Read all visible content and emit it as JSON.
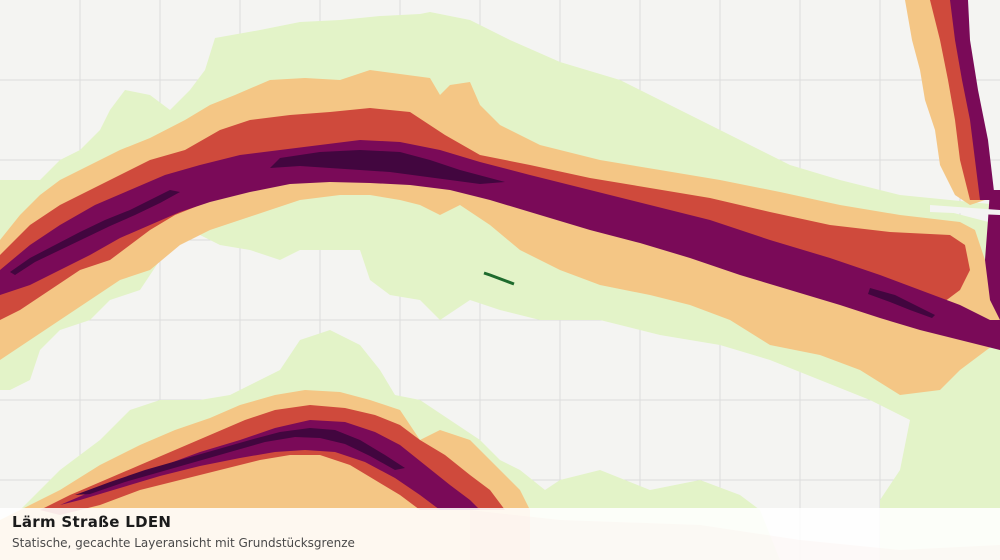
{
  "map": {
    "title": "Lärm Straße LDEN",
    "subtitle": "Statische, gecachte Layeransicht mit Grundstücksgrenze",
    "colors": {
      "background": "#f4f4f2",
      "grid": "#dcdcdc",
      "band_outer": "#e3f3c8",
      "band_2": "#f4c685",
      "band_3": "#cf4a3c",
      "band_4": "#7a0a58",
      "band_inner": "#42063f",
      "boundary": "#1e6b2d"
    }
  }
}
